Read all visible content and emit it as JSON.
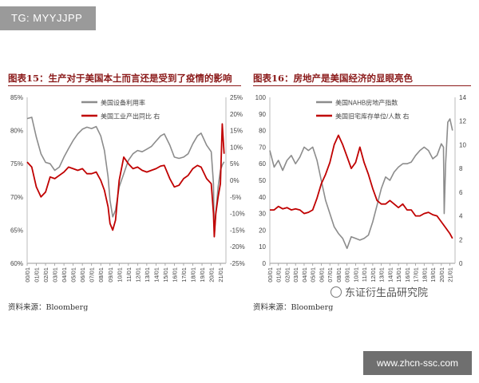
{
  "badge": {
    "text": "TG: MYYJJPP"
  },
  "footer_site": {
    "text": "www.zhcn-ssc.com"
  },
  "watermark": {
    "text": "东证衍生品研究院"
  },
  "colors": {
    "title": "#8b1a1a",
    "gray_series": "#8c8c8c",
    "red_series": "#c00000"
  },
  "figures": [
    {
      "title": "图表15：生产对于美国本土而言还是受到了疫情的影响",
      "source": "资料来源：Bloomberg"
    },
    {
      "title": "图表16：房地产是美国经济的显眼亮色",
      "source": "资料来源：Bloomberg"
    }
  ],
  "chart_data": [
    {
      "type": "line",
      "legend_position": "top-center",
      "grid": false,
      "x_ticks": [
        "00/01",
        "01/01",
        "02/01",
        "03/01",
        "04/01",
        "05/01",
        "06/01",
        "07/01",
        "08/01",
        "09/01",
        "10/01",
        "11/01",
        "12/01",
        "13/01",
        "14/01",
        "15/01",
        "16/01",
        "17/01",
        "18/01",
        "19/01",
        "20/01",
        "21/01"
      ],
      "left_axis": {
        "ticks": [
          "60%",
          "65%",
          "70%",
          "75%",
          "80%",
          "85%"
        ],
        "ylim": [
          60,
          85
        ]
      },
      "right_axis": {
        "ticks": [
          "-25%",
          "-20%",
          "-15%",
          "-10%",
          "-5%",
          "0%",
          "5%",
          "10%",
          "15%",
          "20%",
          "25%"
        ],
        "ylim": [
          -25,
          25
        ]
      },
      "series": [
        {
          "name": "美国设备利用率",
          "axis": "left",
          "color": "#8c8c8c",
          "x": [
            2000,
            2000.5,
            2001,
            2001.5,
            2002,
            2002.5,
            2003,
            2003.5,
            2004,
            2004.5,
            2005,
            2005.5,
            2006,
            2006.5,
            2007,
            2007.5,
            2008,
            2008.4,
            2008.8,
            2009,
            2009.3,
            2009.6,
            2010,
            2010.5,
            2011,
            2011.5,
            2012,
            2012.5,
            2013,
            2013.5,
            2014,
            2014.5,
            2014.9,
            2015.5,
            2016,
            2016.5,
            2017,
            2017.5,
            2018,
            2018.5,
            2018.9,
            2019.5,
            2020,
            2020.25,
            2020.33,
            2020.5,
            2020.75,
            2021,
            2021.2,
            2021.4
          ],
          "values": [
            81.8,
            82.0,
            79.0,
            76.5,
            75.2,
            75.0,
            74.0,
            74.5,
            76.0,
            77.3,
            78.5,
            79.5,
            80.2,
            80.5,
            80.3,
            80.6,
            79.2,
            77.0,
            73.0,
            69.5,
            67.0,
            68.0,
            71.5,
            73.5,
            75.5,
            76.5,
            77.0,
            76.8,
            77.2,
            77.6,
            78.4,
            79.2,
            79.5,
            77.8,
            76.0,
            75.8,
            76.0,
            76.5,
            78.0,
            79.2,
            79.6,
            77.8,
            76.8,
            72.0,
            64.2,
            67.5,
            71.5,
            74.0,
            74.8,
            75.3
          ]
        },
        {
          "name": "美国工业产出同比 右",
          "axis": "right",
          "color": "#c00000",
          "x": [
            2000,
            2000.5,
            2001,
            2001.5,
            2002,
            2002.5,
            2003,
            2003.5,
            2004,
            2004.5,
            2005,
            2005.5,
            2006,
            2006.5,
            2007,
            2007.5,
            2008,
            2008.4,
            2008.8,
            2009,
            2009.3,
            2009.6,
            2010,
            2010.5,
            2011,
            2011.5,
            2012,
            2012.5,
            2013,
            2013.5,
            2014,
            2014.5,
            2014.9,
            2015.5,
            2016,
            2016.5,
            2017,
            2017.5,
            2018,
            2018.5,
            2018.9,
            2019.5,
            2020,
            2020.25,
            2020.33,
            2020.5,
            2020.75,
            2021,
            2021.2,
            2021.4
          ],
          "values": [
            5.5,
            4.0,
            -2.0,
            -5.0,
            -3.5,
            1.0,
            0.5,
            1.5,
            2.5,
            4.0,
            3.5,
            3.0,
            3.5,
            2.0,
            2.0,
            2.5,
            0.0,
            -3.0,
            -8.0,
            -13.0,
            -15.0,
            -12.0,
            0.0,
            7.0,
            5.0,
            3.5,
            4.0,
            3.0,
            2.5,
            3.0,
            3.5,
            4.3,
            4.5,
            0.5,
            -2.0,
            -1.5,
            0.5,
            1.5,
            3.5,
            4.5,
            4.0,
            0.5,
            -1.0,
            -10.0,
            -17.0,
            -10.0,
            -5.0,
            -1.0,
            17.0,
            8.0
          ]
        }
      ]
    },
    {
      "type": "line",
      "legend_position": "top-center",
      "grid": false,
      "x_ticks": [
        "00/01",
        "01/01",
        "02/01",
        "03/01",
        "04/01",
        "05/01",
        "06/01",
        "07/01",
        "08/01",
        "09/01",
        "10/01",
        "11/01",
        "12/01",
        "13/01",
        "14/01",
        "15/01",
        "16/01",
        "17/01",
        "18/01",
        "19/01",
        "20/01",
        "21/01"
      ],
      "left_axis": {
        "ticks": [
          "0",
          "10",
          "20",
          "30",
          "40",
          "50",
          "60",
          "70",
          "80",
          "90",
          "100"
        ],
        "ylim": [
          0,
          100
        ]
      },
      "right_axis": {
        "ticks": [
          "0",
          "2",
          "4",
          "6",
          "8",
          "10",
          "12",
          "14"
        ],
        "ylim": [
          0,
          14
        ]
      },
      "series": [
        {
          "name": "美国NAHB房地产指数",
          "axis": "left",
          "color": "#8c8c8c",
          "x": [
            2000,
            2000.5,
            2001,
            2001.5,
            2002,
            2002.5,
            2003,
            2003.5,
            2004,
            2004.5,
            2005,
            2005.5,
            2006,
            2006.5,
            2007,
            2007.5,
            2008,
            2008.5,
            2009,
            2009.5,
            2010,
            2010.5,
            2011,
            2011.5,
            2012,
            2012.5,
            2013,
            2013.5,
            2014,
            2014.5,
            2015,
            2015.5,
            2016,
            2016.5,
            2017,
            2017.5,
            2018,
            2018.5,
            2019,
            2019.5,
            2020,
            2020.25,
            2020.33,
            2020.5,
            2020.75,
            2021,
            2021.3
          ],
          "values": [
            68,
            58,
            62,
            56,
            62,
            65,
            60,
            64,
            70,
            68,
            70,
            62,
            50,
            38,
            30,
            22,
            18,
            15,
            9,
            16,
            15,
            14,
            15,
            17,
            25,
            35,
            45,
            52,
            50,
            55,
            58,
            60,
            60,
            61,
            65,
            68,
            70,
            68,
            63,
            65,
            72,
            70,
            30,
            60,
            85,
            87,
            80
          ]
        },
        {
          "name": "美国旧宅库存单位/人数 右",
          "axis": "right",
          "color": "#c00000",
          "x": [
            2000,
            2000.5,
            2001,
            2001.5,
            2002,
            2002.5,
            2003,
            2003.5,
            2004,
            2004.5,
            2005,
            2005.5,
            2006,
            2006.5,
            2007,
            2007.5,
            2008,
            2008.5,
            2009,
            2009.5,
            2010,
            2010.5,
            2011,
            2011.5,
            2012,
            2012.5,
            2013,
            2013.5,
            2014,
            2014.5,
            2015,
            2015.5,
            2016,
            2016.5,
            2017,
            2017.5,
            2018,
            2018.5,
            2019,
            2019.5,
            2020,
            2020.5,
            2021,
            2021.3
          ],
          "values": [
            4.5,
            4.5,
            4.8,
            4.6,
            4.7,
            4.5,
            4.6,
            4.5,
            4.2,
            4.3,
            4.5,
            5.5,
            6.7,
            7.5,
            8.5,
            10.0,
            10.8,
            10.0,
            9.0,
            8.0,
            8.5,
            9.8,
            8.5,
            7.5,
            6.3,
            5.3,
            5.0,
            5.0,
            5.3,
            5.0,
            4.7,
            5.0,
            4.5,
            4.5,
            4.0,
            4.0,
            4.2,
            4.3,
            4.1,
            4.0,
            3.5,
            3.0,
            2.5,
            2.1
          ]
        }
      ]
    }
  ]
}
